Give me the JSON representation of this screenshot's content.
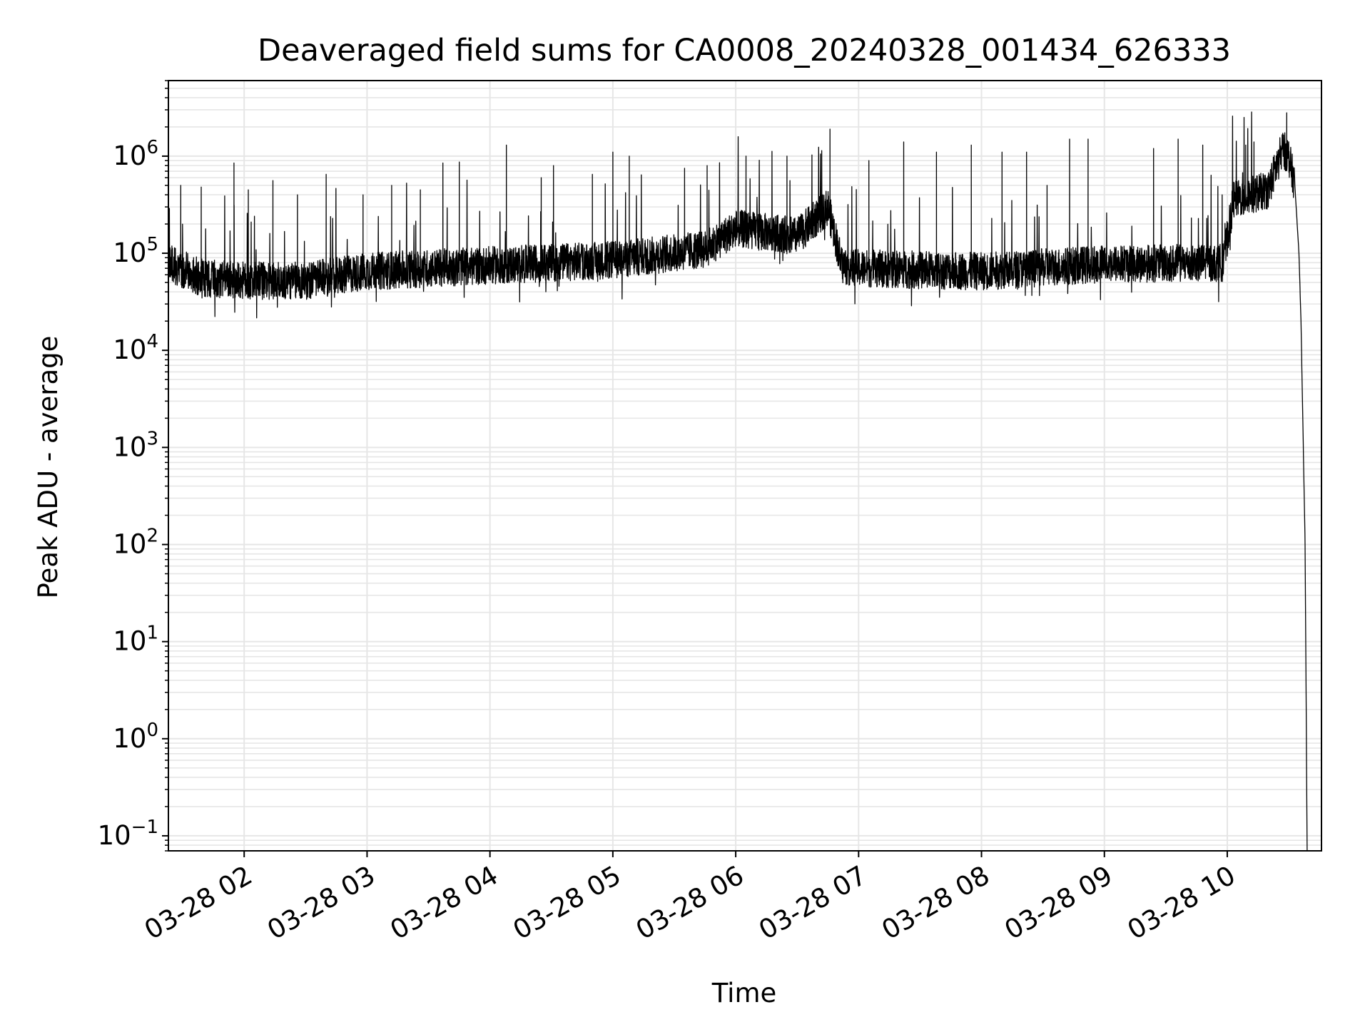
{
  "chart_data": {
    "type": "line",
    "title": "Deaveraged field sums for CA0008_20240328_001434_626333",
    "xlabel": "Time",
    "ylabel": "Peak ADU - average",
    "y_scale": "log",
    "ylim": [
      0.07,
      6000000
    ],
    "xlim": [
      "2024-03-28 01:23",
      "2024-03-28 10:46"
    ],
    "grid": "on (major and minor)",
    "line_color": "#000000",
    "x_ticks": [
      {
        "time": "2024-03-28 02:00",
        "label": "03-28 02"
      },
      {
        "time": "2024-03-28 03:00",
        "label": "03-28 03"
      },
      {
        "time": "2024-03-28 04:00",
        "label": "03-28 04"
      },
      {
        "time": "2024-03-28 05:00",
        "label": "03-28 05"
      },
      {
        "time": "2024-03-28 06:00",
        "label": "03-28 06"
      },
      {
        "time": "2024-03-28 07:00",
        "label": "03-28 07"
      },
      {
        "time": "2024-03-28 08:00",
        "label": "03-28 08"
      },
      {
        "time": "2024-03-28 09:00",
        "label": "03-28 09"
      },
      {
        "time": "2024-03-28 10:00",
        "label": "03-28 10"
      }
    ],
    "y_ticks": [
      {
        "value": 0.1,
        "base": "10",
        "exp": "−1"
      },
      {
        "value": 1,
        "base": "10",
        "exp": "0"
      },
      {
        "value": 10,
        "base": "10",
        "exp": "1"
      },
      {
        "value": 100,
        "base": "10",
        "exp": "2"
      },
      {
        "value": 1000,
        "base": "10",
        "exp": "3"
      },
      {
        "value": 10000,
        "base": "10",
        "exp": "4"
      },
      {
        "value": 100000,
        "base": "10",
        "exp": "5"
      },
      {
        "value": 1000000,
        "base": "10",
        "exp": "6"
      }
    ],
    "series": [
      {
        "values_note_free": true,
        "baseline": [
          [
            "2024-03-28 01:23",
            80000
          ],
          [
            "2024-03-28 01:40",
            55000
          ],
          [
            "2024-03-28 02:00",
            52000
          ],
          [
            "2024-03-28 02:30",
            52000
          ],
          [
            "2024-03-28 03:00",
            65000
          ],
          [
            "2024-03-28 04:00",
            75000
          ],
          [
            "2024-03-28 05:00",
            85000
          ],
          [
            "2024-03-28 05:45",
            110000
          ],
          [
            "2024-03-28 06:00",
            180000
          ],
          [
            "2024-03-28 06:30",
            150000
          ],
          [
            "2024-03-28 06:45",
            300000
          ],
          [
            "2024-03-28 06:52",
            75000
          ],
          [
            "2024-03-28 07:00",
            70000
          ],
          [
            "2024-03-28 08:00",
            65000
          ],
          [
            "2024-03-28 09:00",
            78000
          ],
          [
            "2024-03-28 09:58",
            80000
          ],
          [
            "2024-03-28 10:03",
            350000
          ],
          [
            "2024-03-28 10:20",
            450000
          ],
          [
            "2024-03-28 10:27",
            1200000
          ],
          [
            "2024-03-28 10:30",
            1000000
          ],
          [
            "2024-03-28 10:33",
            500000
          ],
          [
            "2024-03-28 10:35",
            100000
          ],
          [
            "2024-03-28 10:36",
            20000
          ],
          [
            "2024-03-28 10:38",
            100
          ],
          [
            "2024-03-28 10:39",
            0.07
          ]
        ],
        "spikes": [
          [
            "2024-03-28 01:29",
            500000
          ],
          [
            "2024-03-28 01:39",
            480000
          ],
          [
            "2024-03-28 01:55",
            850000
          ],
          [
            "2024-03-28 02:02",
            450000
          ],
          [
            "2024-03-28 02:14",
            560000
          ],
          [
            "2024-03-28 02:26",
            400000
          ],
          [
            "2024-03-28 02:40",
            650000
          ],
          [
            "2024-03-28 02:58",
            400000
          ],
          [
            "2024-03-28 03:12",
            500000
          ],
          [
            "2024-03-28 03:26",
            450000
          ],
          [
            "2024-03-28 03:37",
            850000
          ],
          [
            "2024-03-28 03:45",
            870000
          ],
          [
            "2024-03-28 04:08",
            1300000
          ],
          [
            "2024-03-28 04:25",
            600000
          ],
          [
            "2024-03-28 04:31",
            800000
          ],
          [
            "2024-03-28 04:50",
            650000
          ],
          [
            "2024-03-28 05:00",
            1100000
          ],
          [
            "2024-03-28 05:08",
            1000000
          ],
          [
            "2024-03-28 05:35",
            750000
          ],
          [
            "2024-03-28 05:46",
            800000
          ],
          [
            "2024-03-28 06:05",
            1000000
          ],
          [
            "2024-03-28 06:25",
            1000000
          ],
          [
            "2024-03-28 06:46",
            1900000
          ],
          [
            "2024-03-28 07:05",
            900000
          ],
          [
            "2024-03-28 07:22",
            1400000
          ],
          [
            "2024-03-28 07:38",
            1100000
          ],
          [
            "2024-03-28 07:55",
            1300000
          ],
          [
            "2024-03-28 08:10",
            1100000
          ],
          [
            "2024-03-28 08:22",
            1100000
          ],
          [
            "2024-03-28 08:32",
            500000
          ],
          [
            "2024-03-28 08:43",
            1500000
          ],
          [
            "2024-03-28 08:52",
            1500000
          ],
          [
            "2024-03-28 09:24",
            1200000
          ],
          [
            "2024-03-28 09:36",
            1500000
          ],
          [
            "2024-03-28 09:48",
            1300000
          ],
          [
            "2024-03-28 10:09",
            1300000
          ],
          [
            "2024-03-28 10:13",
            1400000
          ],
          [
            "2024-03-28 10:29",
            2800000
          ]
        ]
      }
    ]
  }
}
